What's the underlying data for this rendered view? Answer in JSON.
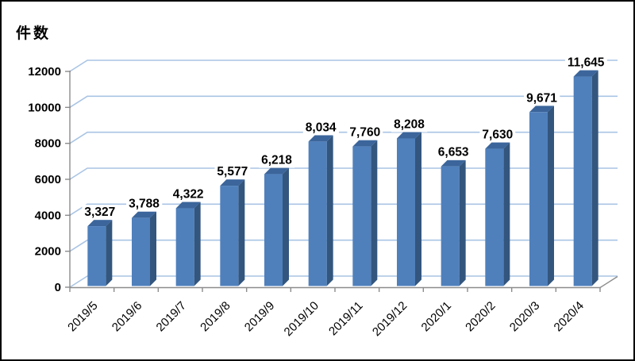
{
  "page": {
    "background": "#ffffff",
    "frame_border_color": "#000000"
  },
  "chart_data": {
    "type": "bar",
    "style": "3d-column",
    "title": "",
    "ylabel": "件数",
    "xlabel": "",
    "categories": [
      "2019/5",
      "2019/6",
      "2019/7",
      "2019/8",
      "2019/9",
      "2019/10",
      "2019/11",
      "2019/12",
      "2020/1",
      "2020/2",
      "2020/3",
      "2020/4"
    ],
    "values": [
      3327,
      3788,
      4322,
      5577,
      6218,
      8034,
      7760,
      8208,
      6653,
      7630,
      9671,
      11645
    ],
    "value_labels": [
      "3,327",
      "3,788",
      "4,322",
      "5,577",
      "6,218",
      "8,034",
      "7,760",
      "8,208",
      "6,653",
      "7,630",
      "9,671",
      "11,645"
    ],
    "ylim": [
      0,
      12000
    ],
    "yticks": [
      0,
      2000,
      4000,
      6000,
      8000,
      10000,
      12000
    ],
    "grid": true,
    "legend": false,
    "colors": {
      "bar_front": "#4f80bc",
      "bar_side": "#33567e",
      "bar_top": "#3b659b",
      "gridline": "#a9c4e4",
      "axis": "#8c8c8c",
      "text": "#000000"
    }
  }
}
